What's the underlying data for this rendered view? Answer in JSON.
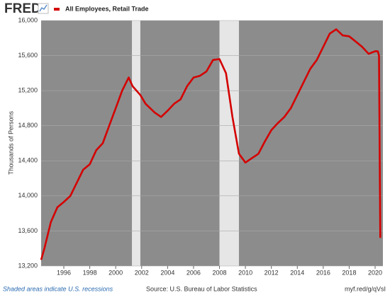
{
  "chart_data": {
    "type": "line",
    "brand": "FRED",
    "ylabel": "Thousands of Persons",
    "recession_note": "Shaded areas indicate U.S. recessions",
    "source": "Source: U.S. Bureau of Labor Statistics",
    "link": "myf.red/g/qVsI",
    "xlim": [
      1994.25,
      2020.6
    ],
    "xticks": [
      1996,
      1998,
      2000,
      2002,
      2004,
      2006,
      2008,
      2010,
      2012,
      2014,
      2016,
      2018,
      2020
    ],
    "ylim": [
      13200,
      16000
    ],
    "yticks": [
      {
        "value": 13200,
        "label": "13,200"
      },
      {
        "value": 13600,
        "label": "13,600"
      },
      {
        "value": 14000,
        "label": "14,000"
      },
      {
        "value": 14400,
        "label": "14,400"
      },
      {
        "value": 14800,
        "label": "14,800"
      },
      {
        "value": 15200,
        "label": "15,200"
      },
      {
        "value": 15600,
        "label": "15,600"
      },
      {
        "value": 16000,
        "label": "16,000"
      }
    ],
    "recessions": [
      [
        2001.25,
        2001.9
      ],
      [
        2008.0,
        2009.5
      ]
    ],
    "plot_color": "#8c8c8c",
    "recession_color": "#e6e6e6",
    "x": [
      1994.25,
      1994.5,
      1995,
      1995.5,
      1996,
      1996.5,
      1997,
      1997.5,
      1998,
      1998.5,
      1999,
      1999.5,
      2000,
      2000.5,
      2001,
      2001.3,
      2001.9,
      2002.3,
      2003,
      2003.5,
      2004,
      2004.5,
      2005,
      2005.5,
      2006,
      2006.5,
      2007,
      2007.5,
      2008,
      2008.5,
      2009,
      2009.5,
      2010,
      2010.5,
      2011,
      2011.5,
      2012,
      2012.5,
      2013,
      2013.5,
      2014,
      2014.5,
      2015,
      2015.5,
      2016,
      2016.5,
      2017,
      2017.5,
      2018,
      2018.5,
      2019,
      2019.5,
      2020,
      2020.2,
      2020.3,
      2020.4
    ],
    "series": [
      {
        "name": "All Employees, Retail Trade",
        "color": "#d40000",
        "values": [
          13270,
          13400,
          13700,
          13870,
          13930,
          14000,
          14150,
          14300,
          14360,
          14520,
          14600,
          14800,
          15000,
          15200,
          15350,
          15250,
          15150,
          15050,
          14950,
          14900,
          14970,
          15050,
          15100,
          15250,
          15350,
          15370,
          15420,
          15550,
          15560,
          15400,
          14900,
          14480,
          14380,
          14430,
          14480,
          14620,
          14750,
          14830,
          14900,
          15000,
          15150,
          15300,
          15450,
          15550,
          15700,
          15850,
          15900,
          15830,
          15820,
          15760,
          15700,
          15620,
          15650,
          15650,
          15600,
          13520
        ]
      }
    ]
  }
}
